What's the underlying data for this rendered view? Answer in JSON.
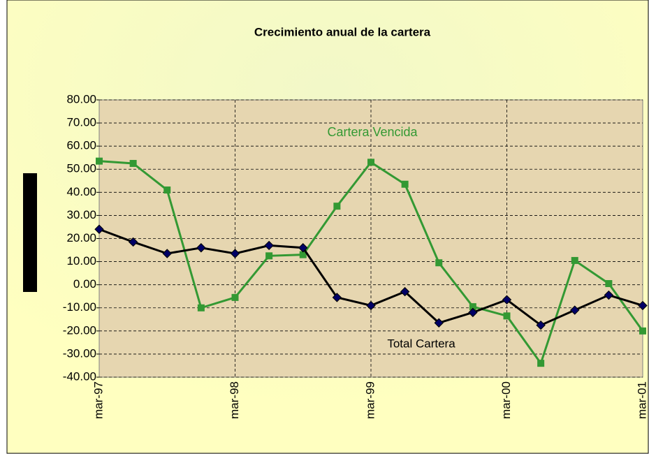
{
  "chart_data": {
    "type": "line",
    "title": "Crecimiento anual de la cartera",
    "categories": [
      "mar-97",
      null,
      null,
      null,
      "mar-98",
      null,
      null,
      null,
      "mar-99",
      null,
      null,
      null,
      "mar-00",
      null,
      null,
      null,
      "mar-01"
    ],
    "series": [
      {
        "name": "Cartera Vencida",
        "color": "#339933",
        "marker": "square",
        "values": [
          53.5,
          52.5,
          41,
          -10,
          -5.5,
          12.5,
          13,
          34,
          53,
          43.5,
          9.5,
          -9.5,
          -13.5,
          -34,
          10.5,
          0.5,
          -20
        ]
      },
      {
        "name": "Total Cartera",
        "color": "#000000",
        "marker_color": "#000066",
        "marker": "diamond",
        "values": [
          24,
          18.5,
          13.5,
          16,
          13.5,
          17,
          16,
          -5.5,
          -9,
          -3,
          -16.5,
          -12,
          -6.5,
          -17.5,
          -11,
          -4.5,
          -9
        ]
      }
    ],
    "ylim": [
      -40,
      80
    ],
    "yticks": [
      {
        "value": -40,
        "label": "-40.00"
      },
      {
        "value": -30,
        "label": "-30.00"
      },
      {
        "value": -20,
        "label": "-20.00"
      },
      {
        "value": -10,
        "label": "-10.00"
      },
      {
        "value": 0,
        "label": "0.00"
      },
      {
        "value": 10,
        "label": "10.00"
      },
      {
        "value": 20,
        "label": "20.00"
      },
      {
        "value": 30,
        "label": "30.00"
      },
      {
        "value": 40,
        "label": "40.00"
      },
      {
        "value": 50,
        "label": "50.00"
      },
      {
        "value": 60,
        "label": "60.00"
      },
      {
        "value": 70,
        "label": "70.00"
      },
      {
        "value": 80,
        "label": "80.00"
      }
    ],
    "grid": true
  }
}
